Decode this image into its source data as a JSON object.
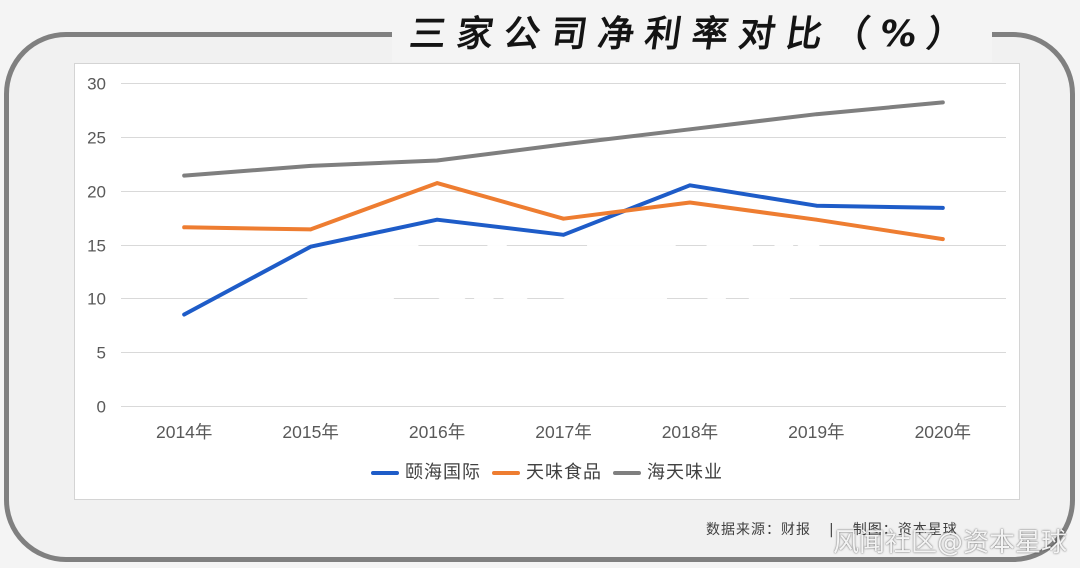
{
  "chart_data": {
    "type": "line",
    "title": "三家公司净利率对比（%）",
    "xlabel": "",
    "ylabel": "",
    "categories": [
      "2014年",
      "2015年",
      "2016年",
      "2017年",
      "2018年",
      "2019年",
      "2020年"
    ],
    "ylim": [
      0,
      30
    ],
    "yticks": [
      0,
      5,
      10,
      15,
      20,
      25,
      30
    ],
    "grid": true,
    "legend": "bottom",
    "series": [
      {
        "name": "颐海国际",
        "color": "#1e5cc8",
        "values": [
          8.5,
          14.8,
          17.3,
          15.9,
          20.5,
          18.6,
          18.4
        ]
      },
      {
        "name": "天味食品",
        "color": "#ee7d31",
        "values": [
          16.6,
          16.4,
          20.7,
          17.4,
          18.9,
          17.3,
          15.5
        ]
      },
      {
        "name": "海天味业",
        "color": "#7f7f7f",
        "values": [
          21.4,
          22.3,
          22.8,
          24.3,
          25.7,
          27.1,
          28.2
        ]
      }
    ]
  },
  "watermark": "资本星球",
  "footer": {
    "source": "数据来源：财报",
    "divider": "|",
    "credit": "制图：资本星球"
  },
  "platform_watermark": "风闻社区@资本星球"
}
